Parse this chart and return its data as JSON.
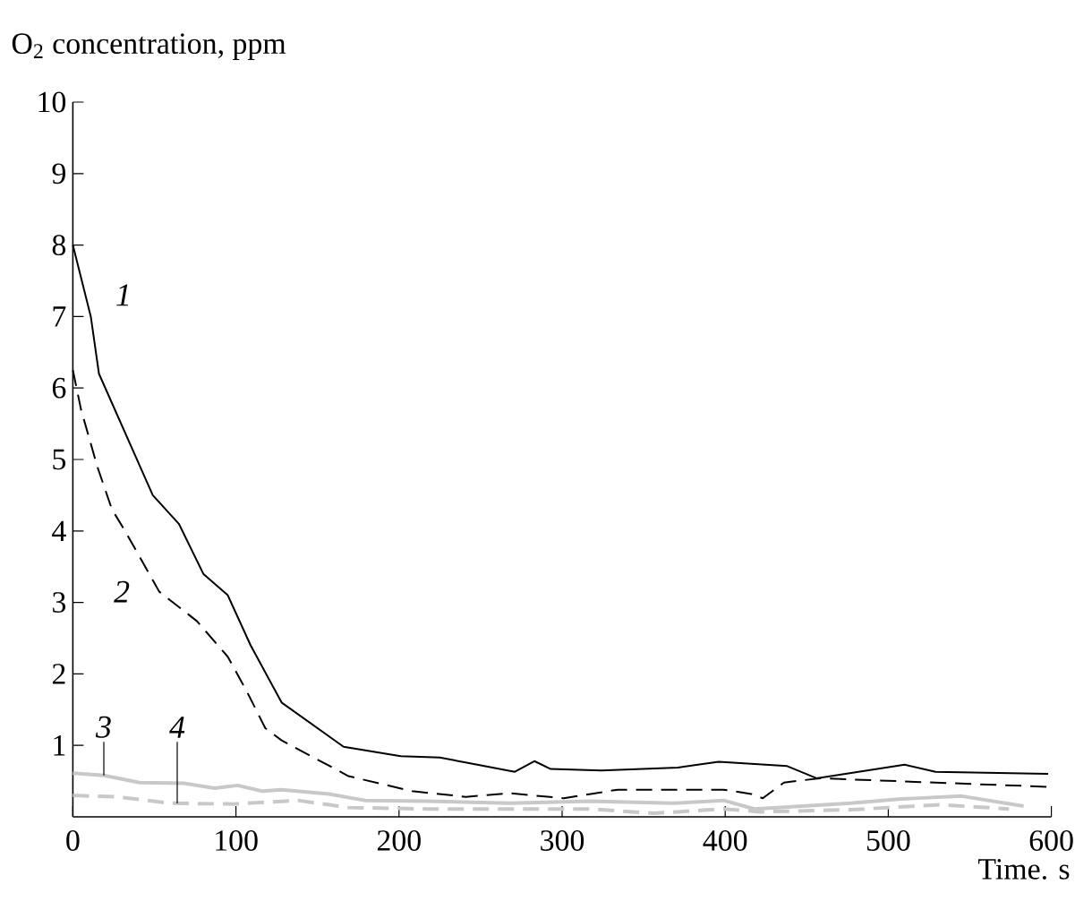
{
  "chart_data": {
    "type": "line",
    "xlabel": "Time. s",
    "ylabel": "O$_{2}$ concentration, ppm",
    "xlim": [
      0,
      600
    ],
    "ylim": [
      0,
      10
    ],
    "xticks": [
      0,
      100,
      200,
      300,
      400,
      500,
      600
    ],
    "yticks": [
      1,
      2,
      3,
      4,
      5,
      6,
      7,
      8,
      9,
      10
    ],
    "grid": false,
    "series": [
      {
        "name": "*1*",
        "color": "#000000",
        "line_style": "solid",
        "x": [
          0,
          11,
          16,
          49,
          65,
          80,
          95,
          109,
          128,
          166,
          201,
          225,
          248,
          271,
          283,
          293,
          324,
          371,
          396,
          438,
          456,
          510,
          529,
          598
        ],
        "values": [
          8.0,
          7.0,
          6.2,
          4.5,
          4.1,
          3.4,
          3.1,
          2.4,
          1.6,
          0.98,
          0.85,
          0.83,
          0.73,
          0.63,
          0.78,
          0.67,
          0.65,
          0.69,
          0.77,
          0.71,
          0.54,
          0.73,
          0.63,
          0.6
        ]
      },
      {
        "name": "*2*",
        "color": "#000000",
        "line_style": "dashed",
        "x": [
          0,
          5,
          15,
          24,
          32,
          53,
          76,
          95,
          107,
          118,
          128,
          169,
          208,
          241,
          268,
          301,
          334,
          399,
          416,
          423,
          436,
          458,
          598
        ],
        "values": [
          6.25,
          5.7,
          4.9,
          4.3,
          4.0,
          3.15,
          2.74,
          2.24,
          1.74,
          1.24,
          1.07,
          0.57,
          0.36,
          0.28,
          0.33,
          0.26,
          0.38,
          0.38,
          0.32,
          0.26,
          0.48,
          0.54,
          0.42
        ]
      },
      {
        "name": "*3*",
        "color": "#c8c8c8",
        "line_style": "solid",
        "x": [
          0,
          19,
          41,
          68,
          87,
          101,
          116,
          128,
          157,
          179,
          218,
          268,
          317,
          368,
          399,
          418,
          477,
          508,
          545,
          583
        ],
        "values": [
          0.61,
          0.58,
          0.48,
          0.47,
          0.4,
          0.44,
          0.36,
          0.38,
          0.32,
          0.23,
          0.22,
          0.19,
          0.22,
          0.19,
          0.23,
          0.11,
          0.19,
          0.25,
          0.29,
          0.15
        ]
      },
      {
        "name": "*4*",
        "color": "#c8c8c8",
        "line_style": "dashed",
        "x": [
          0,
          27,
          60,
          99,
          138,
          169,
          218,
          268,
          317,
          356,
          399,
          422,
          477,
          532,
          574
        ],
        "values": [
          0.3,
          0.28,
          0.19,
          0.18,
          0.23,
          0.13,
          0.11,
          0.11,
          0.11,
          0.05,
          0.11,
          0.07,
          0.1,
          0.17,
          0.11
        ]
      }
    ]
  }
}
